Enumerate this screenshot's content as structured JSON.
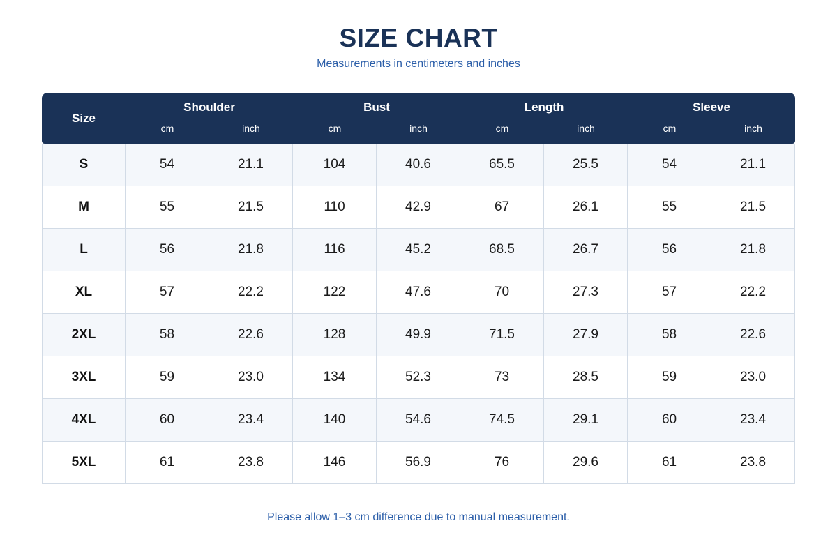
{
  "title": "SIZE CHART",
  "subtitle": "Measurements in centimeters and inches",
  "colors": {
    "header_bg": "#1a3257",
    "title": "#1a3257",
    "accent_text": "#2a5da8",
    "row_alt": "#f4f7fb",
    "grid": "#d2dbe6"
  },
  "table": {
    "size_header": "Size",
    "groups": [
      "Shoulder",
      "Bust",
      "Length",
      "Sleeve"
    ],
    "units": [
      "cm",
      "inch"
    ],
    "rows": [
      {
        "size": "S",
        "values": [
          "54",
          "21.1",
          "104",
          "40.6",
          "65.5",
          "25.5",
          "54",
          "21.1"
        ]
      },
      {
        "size": "M",
        "values": [
          "55",
          "21.5",
          "110",
          "42.9",
          "67",
          "26.1",
          "55",
          "21.5"
        ]
      },
      {
        "size": "L",
        "values": [
          "56",
          "21.8",
          "116",
          "45.2",
          "68.5",
          "26.7",
          "56",
          "21.8"
        ]
      },
      {
        "size": "XL",
        "values": [
          "57",
          "22.2",
          "122",
          "47.6",
          "70",
          "27.3",
          "57",
          "22.2"
        ]
      },
      {
        "size": "2XL",
        "values": [
          "58",
          "22.6",
          "128",
          "49.9",
          "71.5",
          "27.9",
          "58",
          "22.6"
        ]
      },
      {
        "size": "3XL",
        "values": [
          "59",
          "23.0",
          "134",
          "52.3",
          "73",
          "28.5",
          "59",
          "23.0"
        ]
      },
      {
        "size": "4XL",
        "values": [
          "60",
          "23.4",
          "140",
          "54.6",
          "74.5",
          "29.1",
          "60",
          "23.4"
        ]
      },
      {
        "size": "5XL",
        "values": [
          "61",
          "23.8",
          "146",
          "56.9",
          "76",
          "29.6",
          "61",
          "23.8"
        ]
      }
    ]
  },
  "note": "Please allow 1–3 cm difference due to manual measurement."
}
